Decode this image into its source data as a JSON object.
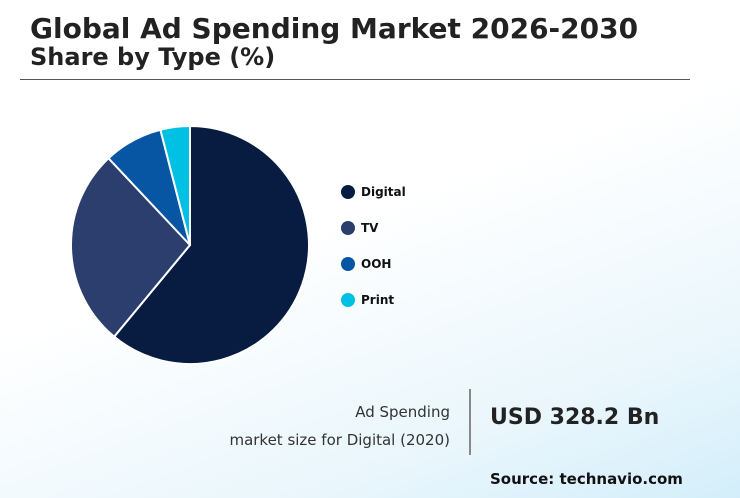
{
  "header": {
    "title": "Global Ad Spending Market 2026-2030",
    "subtitle": "Share by Type (%)"
  },
  "chart_data": {
    "type": "pie",
    "title": "Global Ad Spending Market 2026-2030",
    "subtitle": "Share by Type (%)",
    "categories": [
      "Digital",
      "TV",
      "OOH",
      "Print"
    ],
    "values": [
      61,
      27,
      8,
      4
    ],
    "colors": [
      "#081c42",
      "#2c3e6e",
      "#0656a3",
      "#00c0e3"
    ],
    "start_angle": "12 o'clock",
    "direction": "clockwise",
    "legend_position": "right"
  },
  "stat": {
    "label_line1": "Ad Spending",
    "label_line2": "market size for Digital (2020)",
    "value": "USD 328.2 Bn"
  },
  "source": "Source: technavio.com"
}
